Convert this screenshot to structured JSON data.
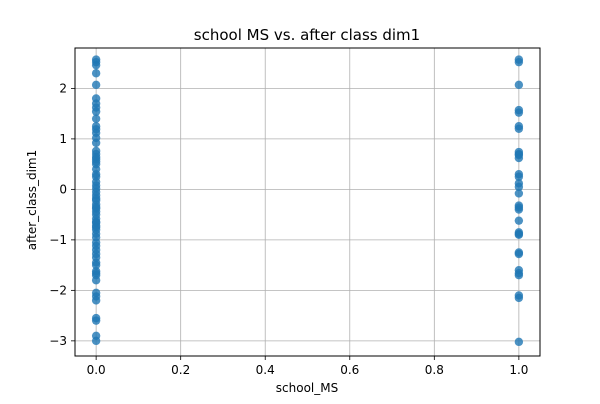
{
  "chart_data": {
    "type": "scatter",
    "title": "school MS vs. after class dim1",
    "xlabel": "school_MS",
    "ylabel": "after_class_dim1",
    "xlim": [
      -0.05,
      1.05
    ],
    "ylim": [
      -3.3,
      2.8
    ],
    "xticks": [
      0.0,
      0.2,
      0.4,
      0.6,
      0.8,
      1.0
    ],
    "xtick_labels": [
      "0.0",
      "0.2",
      "0.4",
      "0.6",
      "0.8",
      "1.0"
    ],
    "yticks": [
      -3,
      -2,
      -1,
      0,
      1,
      2
    ],
    "ytick_labels": [
      "−3",
      "−2",
      "−1",
      "0",
      "1",
      "2"
    ],
    "grid": true,
    "marker_color": "#1f77b4",
    "series": [
      {
        "x": [
          0,
          0,
          0,
          0,
          0,
          0,
          0,
          0,
          0,
          0,
          0,
          0,
          0,
          0,
          0,
          0,
          0,
          0,
          0,
          0,
          0,
          0,
          0,
          0,
          0,
          0,
          0,
          0,
          0,
          0,
          0,
          0,
          0,
          0,
          0,
          0,
          0,
          0,
          0,
          0,
          0,
          0,
          0,
          0,
          0,
          0,
          0,
          0,
          0,
          0,
          0,
          0,
          0,
          0,
          0,
          0,
          0,
          0,
          0,
          0,
          0,
          0,
          1,
          1,
          1,
          1,
          1,
          1,
          1,
          1,
          1,
          1,
          1,
          1,
          1,
          1,
          1,
          1,
          1,
          1,
          1,
          1,
          1,
          1,
          1,
          1,
          1,
          1,
          1,
          1,
          1,
          1,
          1
        ],
        "y": [
          2.57,
          2.52,
          2.46,
          2.07,
          1.7,
          1.62,
          1.54,
          1.25,
          1.19,
          1.12,
          1.02,
          0.92,
          0.76,
          0.7,
          0.64,
          0.55,
          0.3,
          0.25,
          0.15,
          0.08,
          0.02,
          -0.05,
          -0.12,
          -0.18,
          -0.22,
          -0.3,
          -0.38,
          -0.44,
          -0.5,
          -0.58,
          -0.64,
          -0.72,
          -0.8,
          -0.88,
          -0.95,
          -1.05,
          -1.12,
          -1.2,
          -1.28,
          -1.35,
          -1.45,
          -1.62,
          -1.66,
          -1.7,
          -2.05,
          -2.12,
          -2.55,
          -3.0,
          2.3,
          1.8,
          1.4,
          0.4,
          0.5,
          0.6,
          -0.35,
          -0.66,
          -0.75,
          -1.5,
          -1.8,
          -2.2,
          -2.6,
          -2.9,
          2.57,
          2.52,
          2.07,
          1.57,
          1.52,
          1.25,
          0.74,
          0.7,
          0.62,
          0.3,
          0.25,
          0.12,
          0.05,
          -0.08,
          -0.32,
          -0.4,
          -0.62,
          -0.85,
          -0.9,
          -1.25,
          -1.28,
          -1.6,
          -1.66,
          -1.7,
          -2.1,
          -2.15,
          -3.02,
          1.2,
          0.68,
          -0.36,
          -0.88
        ]
      }
    ]
  }
}
